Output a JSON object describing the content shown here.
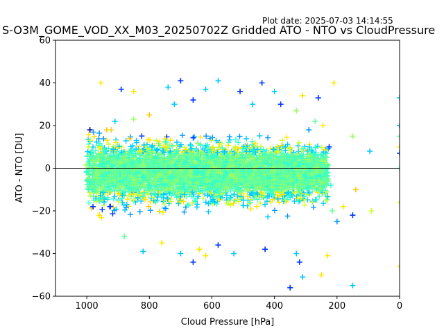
{
  "plot_date": "Plot date: 2025-07-03 14:14:55",
  "chart_data": {
    "type": "scatter",
    "title": "S-O3M_GOME_VOD_XX_M03_20250702Z Gridded ATO - NTO vs CloudPressure",
    "xlabel": "Cloud Pressure [hPa]",
    "ylabel": "ATO - NTO [DU]",
    "xlim": [
      1100,
      0
    ],
    "ylim": [
      -60,
      60
    ],
    "x_inverted": true,
    "xticks": [
      1000,
      800,
      600,
      400,
      200,
      0
    ],
    "yticks": [
      -60,
      -40,
      -20,
      0,
      20,
      40,
      60
    ],
    "marker": "+",
    "reference_line_y": 0,
    "grid": false,
    "colormap": "jet",
    "point_colors": [
      "#00008f",
      "#0033ff",
      "#0096ff",
      "#00c8ff",
      "#33ffcc",
      "#66ff99",
      "#99ff66",
      "#ccff33",
      "#ffe600",
      "#ffc800"
    ],
    "core_region": {
      "x_range": [
        1000,
        230
      ],
      "y_center": -2,
      "y_spread_near_1000": 18,
      "y_spread_near_230": 14
    },
    "points": [
      [
        700,
        41
      ],
      [
        580,
        41
      ],
      [
        955,
        40
      ],
      [
        440,
        40
      ],
      [
        740,
        38
      ],
      [
        210,
        40
      ],
      [
        890,
        37
      ],
      [
        620,
        37
      ],
      [
        850,
        36
      ],
      [
        510,
        36
      ],
      [
        400,
        36
      ],
      [
        310,
        34
      ],
      [
        260,
        33
      ],
      [
        0,
        33
      ],
      [
        0,
        20
      ],
      [
        0,
        15
      ],
      [
        0,
        10
      ],
      [
        0,
        7
      ],
      [
        0,
        0
      ],
      [
        0,
        -16
      ],
      [
        0,
        -46
      ],
      [
        95,
        8
      ],
      [
        150,
        15
      ],
      [
        140,
        -10
      ],
      [
        200,
        -25
      ],
      [
        215,
        -20
      ],
      [
        180,
        -18
      ],
      [
        150,
        -22
      ],
      [
        150,
        -55
      ],
      [
        90,
        -20
      ],
      [
        350,
        -56
      ],
      [
        310,
        -51
      ],
      [
        250,
        -50
      ],
      [
        320,
        -44
      ],
      [
        330,
        -40
      ],
      [
        230,
        -41
      ],
      [
        430,
        -38
      ],
      [
        530,
        -40
      ],
      [
        620,
        -41
      ],
      [
        660,
        -44
      ],
      [
        700,
        -40
      ],
      [
        640,
        -38
      ],
      [
        580,
        -36
      ],
      [
        820,
        -39
      ],
      [
        760,
        -35
      ],
      [
        880,
        -32
      ],
      [
        960,
        -22
      ],
      [
        980,
        -18
      ],
      [
        995,
        -10
      ],
      [
        995,
        10
      ],
      [
        990,
        18
      ],
      [
        910,
        22
      ],
      [
        850,
        23
      ],
      [
        800,
        25
      ],
      [
        290,
        18
      ],
      [
        270,
        22
      ],
      [
        245,
        20
      ],
      [
        225,
        10
      ],
      [
        220,
        -8
      ],
      [
        235,
        -15
      ],
      [
        380,
        30
      ],
      [
        470,
        30
      ],
      [
        330,
        27
      ],
      [
        660,
        32
      ],
      [
        720,
        30
      ]
    ]
  }
}
